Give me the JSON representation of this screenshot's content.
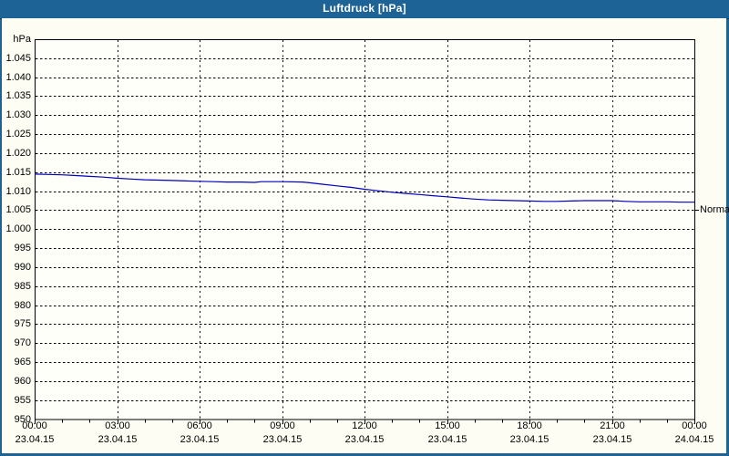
{
  "window": {
    "title": "Luftdruck [hPa]"
  },
  "colors": {
    "titlebar": "#1e6396",
    "titlebar_text": "#ffffff",
    "frame": "#1e6396",
    "content_bg": "#fdfdf4",
    "plot_bg": "#fffffa",
    "grid": "#000000",
    "axis": "#000000",
    "line": "#0000bb",
    "label_text": "#000000"
  },
  "chart_data": {
    "type": "line",
    "title": "Luftdruck [hPa]",
    "ylabel": "hPa",
    "ylim": [
      950,
      1050
    ],
    "xlim_hours": [
      0,
      24
    ],
    "grid": true,
    "yticks": [
      {
        "v": 1045,
        "label": "1.045"
      },
      {
        "v": 1040,
        "label": "1.040"
      },
      {
        "v": 1035,
        "label": "1.035"
      },
      {
        "v": 1030,
        "label": "1.030"
      },
      {
        "v": 1025,
        "label": "1.025"
      },
      {
        "v": 1020,
        "label": "1.020"
      },
      {
        "v": 1015,
        "label": "1.015"
      },
      {
        "v": 1010,
        "label": "1.010"
      },
      {
        "v": 1005,
        "label": "1.005"
      },
      {
        "v": 1000,
        "label": "1.000"
      },
      {
        "v": 995,
        "label": "995"
      },
      {
        "v": 990,
        "label": "990"
      },
      {
        "v": 985,
        "label": "985"
      },
      {
        "v": 980,
        "label": "980"
      },
      {
        "v": 975,
        "label": "975"
      },
      {
        "v": 970,
        "label": "970"
      },
      {
        "v": 965,
        "label": "965"
      },
      {
        "v": 960,
        "label": "960"
      },
      {
        "v": 955,
        "label": "955"
      },
      {
        "v": 950,
        "label": "950"
      }
    ],
    "xticks": [
      {
        "hour": 0,
        "time": "00:00",
        "date": "23.04.15"
      },
      {
        "hour": 3,
        "time": "03:00",
        "date": "23.04.15"
      },
      {
        "hour": 6,
        "time": "06:00",
        "date": "23.04.15"
      },
      {
        "hour": 9,
        "time": "09:00",
        "date": "23.04.15"
      },
      {
        "hour": 12,
        "time": "12:00",
        "date": "23.04.15"
      },
      {
        "hour": 15,
        "time": "15:00",
        "date": "23.04.15"
      },
      {
        "hour": 18,
        "time": "18:00",
        "date": "23.04.15"
      },
      {
        "hour": 21,
        "time": "21:00",
        "date": "23.04.15"
      },
      {
        "hour": 24,
        "time": "00:00",
        "date": "24.04.15"
      }
    ],
    "minor_xtick_every_hours": 1,
    "series": [
      {
        "name": "Luftdruck",
        "color": "#0000bb",
        "points_hour_hpa": [
          [
            0,
            1014.5
          ],
          [
            0.5,
            1014.4
          ],
          [
            1,
            1014.3
          ],
          [
            1.5,
            1014.1
          ],
          [
            2,
            1013.9
          ],
          [
            2.5,
            1013.7
          ],
          [
            3,
            1013.4
          ],
          [
            3.5,
            1013.2
          ],
          [
            4,
            1013.0
          ],
          [
            4.5,
            1012.9
          ],
          [
            5,
            1012.8
          ],
          [
            5.5,
            1012.7
          ],
          [
            6,
            1012.6
          ],
          [
            6.5,
            1012.5
          ],
          [
            7,
            1012.4
          ],
          [
            7.5,
            1012.4
          ],
          [
            8,
            1012.3
          ],
          [
            8.25,
            1012.5
          ],
          [
            9,
            1012.5
          ],
          [
            9.75,
            1012.4
          ],
          [
            10,
            1012.2
          ],
          [
            10.5,
            1011.8
          ],
          [
            11,
            1011.4
          ],
          [
            11.5,
            1011.0
          ],
          [
            12,
            1010.5
          ],
          [
            12.5,
            1010.1
          ],
          [
            13,
            1009.7
          ],
          [
            13.5,
            1009.4
          ],
          [
            14,
            1009.1
          ],
          [
            14.5,
            1008.8
          ],
          [
            15,
            1008.5
          ],
          [
            15.5,
            1008.2
          ],
          [
            16,
            1007.9
          ],
          [
            16.5,
            1007.7
          ],
          [
            17,
            1007.6
          ],
          [
            17.5,
            1007.5
          ],
          [
            18,
            1007.4
          ],
          [
            18.5,
            1007.3
          ],
          [
            19,
            1007.3
          ],
          [
            19.5,
            1007.4
          ],
          [
            20,
            1007.5
          ],
          [
            20.5,
            1007.5
          ],
          [
            21,
            1007.5
          ],
          [
            21.5,
            1007.3
          ],
          [
            22,
            1007.2
          ],
          [
            22.5,
            1007.2
          ],
          [
            23,
            1007.2
          ],
          [
            23.5,
            1007.1
          ],
          [
            24,
            1007.1
          ]
        ]
      }
    ],
    "annotations": [
      {
        "label": "Normal",
        "hpa": 1005.2,
        "side": "right"
      }
    ]
  }
}
